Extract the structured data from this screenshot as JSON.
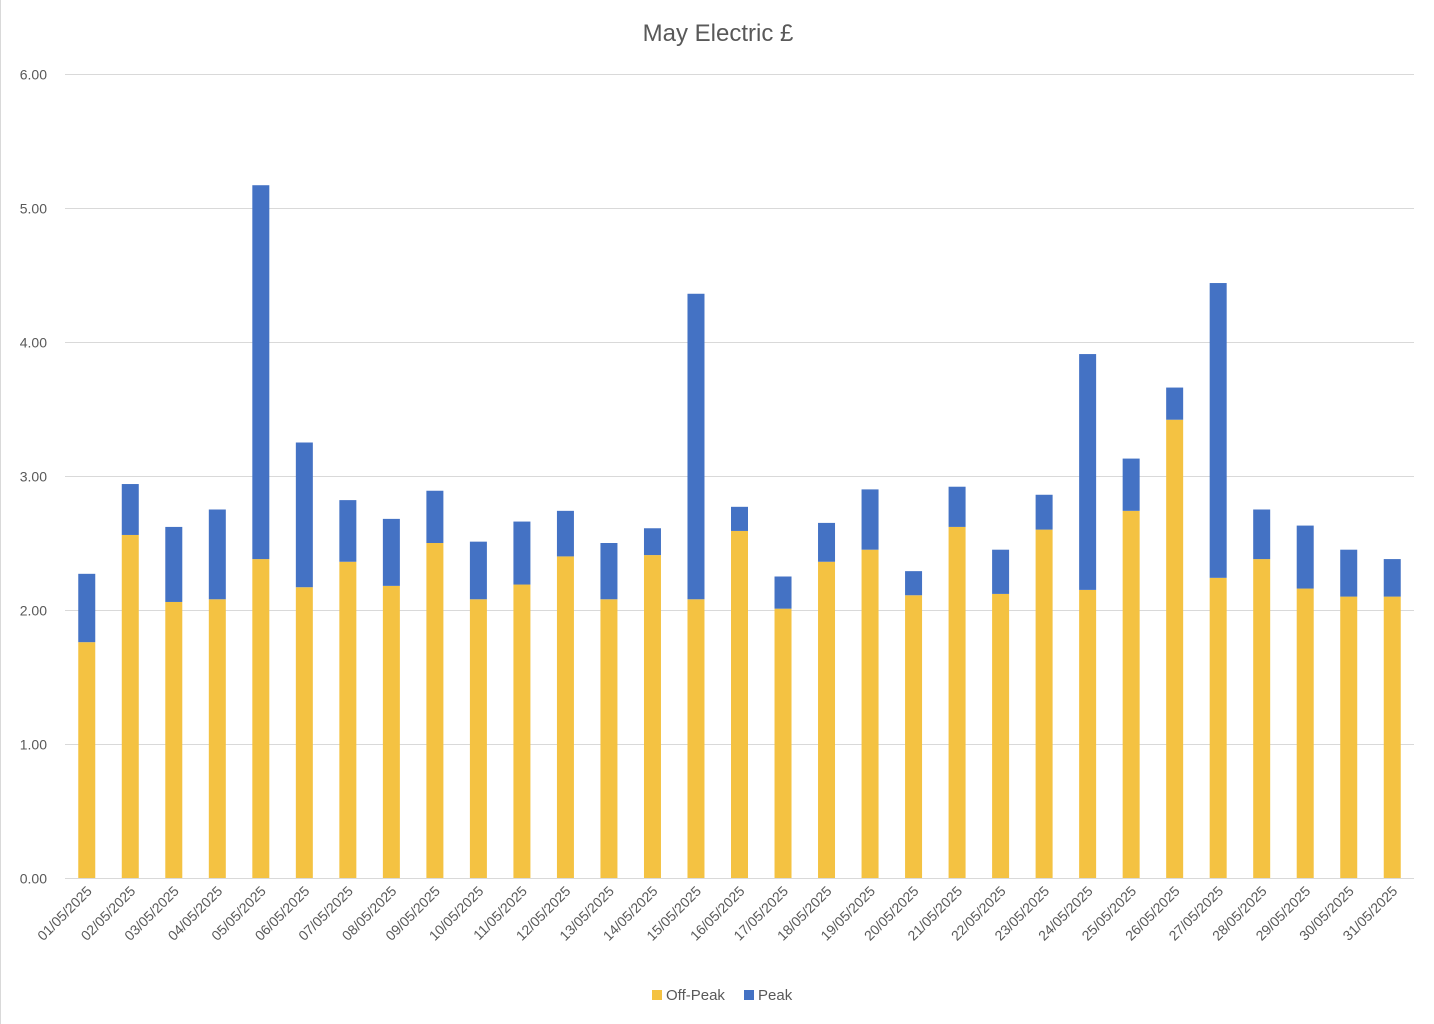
{
  "chart_data": {
    "type": "bar",
    "stacked": true,
    "title": "May Electric £",
    "xlabel": "",
    "ylabel": "",
    "ylim": [
      0,
      6
    ],
    "yticks": [
      "0.00",
      "1.00",
      "2.00",
      "3.00",
      "4.00",
      "5.00",
      "6.00"
    ],
    "grid": true,
    "legend_position": "bottom",
    "categories": [
      "01/05/2025",
      "02/05/2025",
      "03/05/2025",
      "04/05/2025",
      "05/05/2025",
      "06/05/2025",
      "07/05/2025",
      "08/05/2025",
      "09/05/2025",
      "10/05/2025",
      "11/05/2025",
      "12/05/2025",
      "13/05/2025",
      "14/05/2025",
      "15/05/2025",
      "16/05/2025",
      "17/05/2025",
      "18/05/2025",
      "19/05/2025",
      "20/05/2025",
      "21/05/2025",
      "22/05/2025",
      "23/05/2025",
      "24/05/2025",
      "25/05/2025",
      "26/05/2025",
      "27/05/2025",
      "28/05/2025",
      "29/05/2025",
      "30/05/2025",
      "31/05/2025"
    ],
    "series": [
      {
        "name": "Off-Peak",
        "color": "#F4C242",
        "values": [
          1.76,
          2.56,
          2.06,
          2.08,
          2.38,
          2.17,
          2.36,
          2.18,
          2.5,
          2.08,
          2.19,
          2.4,
          2.08,
          2.41,
          2.08,
          2.59,
          2.01,
          2.36,
          2.45,
          2.11,
          2.62,
          2.12,
          2.6,
          2.15,
          2.74,
          3.42,
          2.24,
          2.38,
          2.16,
          2.1,
          2.1
        ]
      },
      {
        "name": "Peak",
        "color": "#4472C4",
        "values": [
          0.51,
          0.38,
          0.56,
          0.67,
          2.79,
          1.08,
          0.46,
          0.5,
          0.39,
          0.43,
          0.47,
          0.34,
          0.42,
          0.2,
          2.28,
          0.18,
          0.24,
          0.29,
          0.45,
          0.18,
          0.3,
          0.33,
          0.26,
          1.76,
          0.39,
          0.24,
          2.2,
          0.37,
          0.47,
          0.35,
          0.28
        ]
      }
    ]
  }
}
